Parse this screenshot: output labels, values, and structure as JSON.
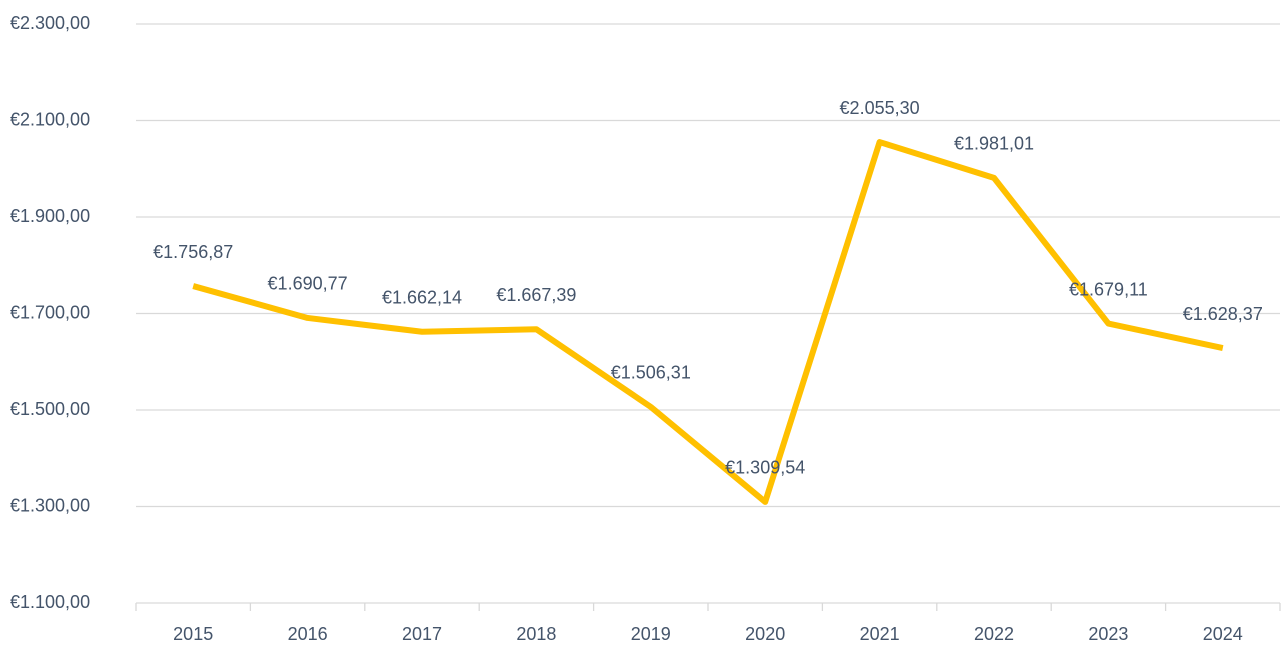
{
  "chart_data": {
    "type": "line",
    "categories": [
      "2015",
      "2016",
      "2017",
      "2018",
      "2019",
      "2020",
      "2021",
      "2022",
      "2023",
      "2024"
    ],
    "values": [
      1756.87,
      1690.77,
      1662.14,
      1667.39,
      1506.31,
      1309.54,
      2055.3,
      1981.01,
      1679.11,
      1628.37
    ],
    "value_labels": [
      "€1.756,87",
      "€1.690,77",
      "€1.662,14",
      "€1.667,39",
      "€1.506,31",
      "€1.309,54",
      "€2.055,30",
      "€1.981,01",
      "€1.679,11",
      "€1.628,37"
    ],
    "color": "#ffc000",
    "ylim": [
      1100,
      2300
    ],
    "yticks": [
      {
        "value": 1100,
        "label": "€1.100,00"
      },
      {
        "value": 1300,
        "label": "€1.300,00"
      },
      {
        "value": 1500,
        "label": "€1.500,00"
      },
      {
        "value": 1700,
        "label": "€1.700,00"
      },
      {
        "value": 1900,
        "label": "€1.900,00"
      },
      {
        "value": 2100,
        "label": "€2.100,00"
      },
      {
        "value": 2300,
        "label": "€2.300,00"
      }
    ],
    "grid": true
  }
}
